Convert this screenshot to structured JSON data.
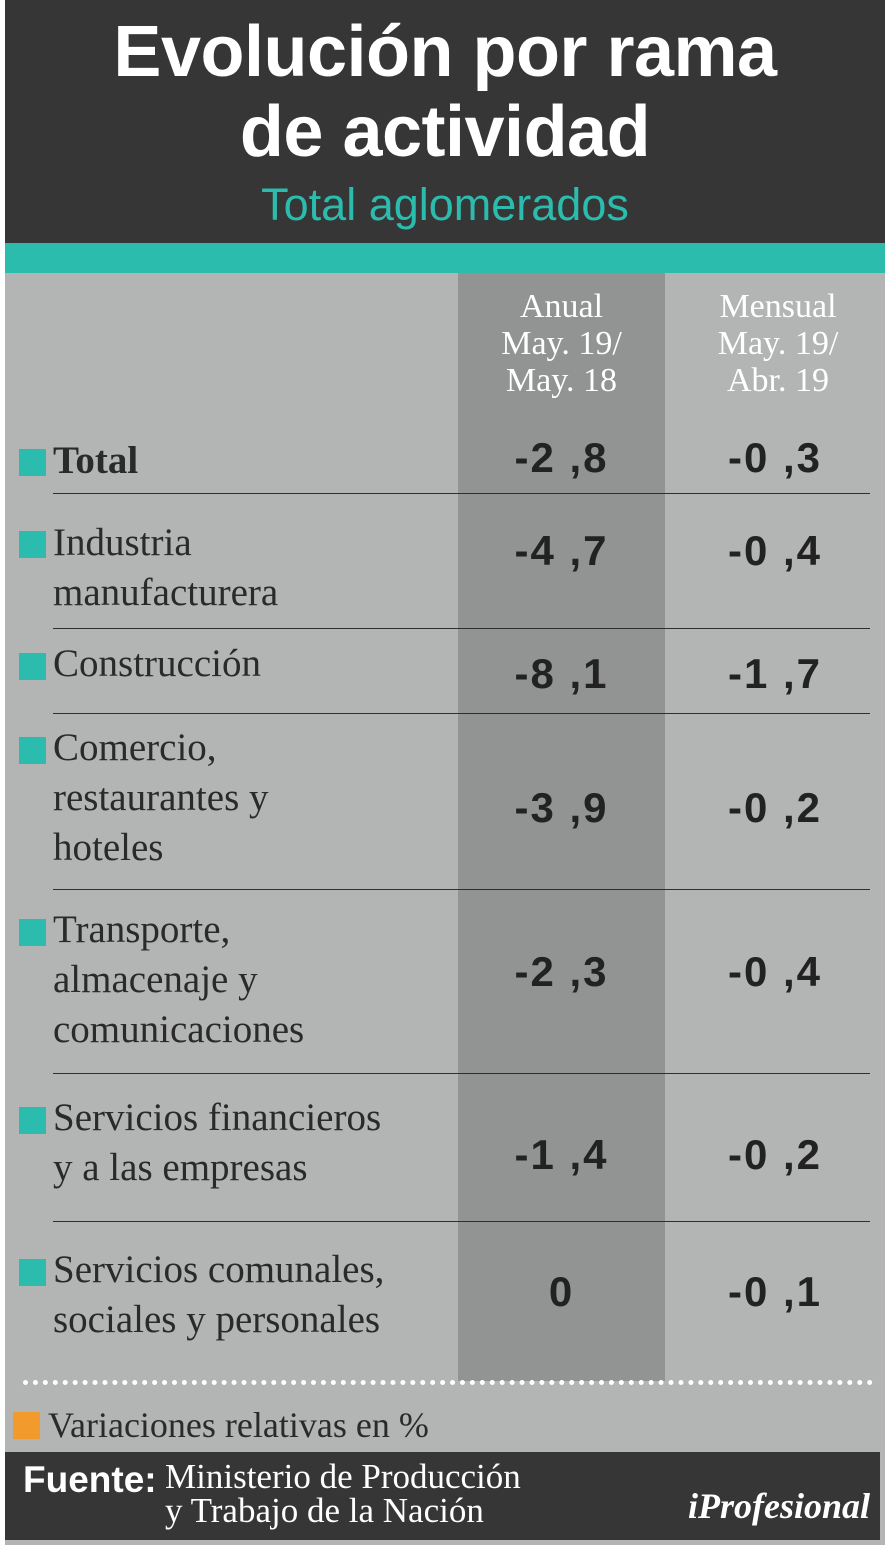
{
  "header": {
    "title_line1": "Evolución por rama",
    "title_line2": "de actividad",
    "subtitle": "Total aglomerados"
  },
  "columns": {
    "anual": [
      "Anual",
      "May. 19/",
      "May. 18"
    ],
    "mensual": [
      "Mensual",
      "May. 19/",
      "Abr. 19"
    ]
  },
  "rows": [
    {
      "label": [
        "Total"
      ],
      "anual": "-2 ,8",
      "mensual": "-0 ,3"
    },
    {
      "label": [
        "Industria",
        "manufacturera"
      ],
      "anual": "-4 ,7",
      "mensual": "-0 ,4"
    },
    {
      "label": [
        "Construcción"
      ],
      "anual": "-8 ,1",
      "mensual": "-1 ,7"
    },
    {
      "label": [
        "Comercio,",
        "restaurantes y",
        "hoteles"
      ],
      "anual": "-3 ,9",
      "mensual": "-0 ,2"
    },
    {
      "label": [
        "Transporte,",
        "almacenaje y",
        "comunicaciones"
      ],
      "anual": "-2 ,3",
      "mensual": "-0 ,4"
    },
    {
      "label": [
        "Servicios financieros",
        "y a las empresas"
      ],
      "anual": "-1 ,4",
      "mensual": "-0 ,2"
    },
    {
      "label": [
        "Servicios comunales,",
        "sociales y personales"
      ],
      "anual": "0",
      "mensual": "-0 ,1"
    }
  ],
  "legend": {
    "text": "Variaciones relativas en %"
  },
  "footer": {
    "source_label": "Fuente:",
    "source_line1": "Ministerio de Producción",
    "source_line2": "y Trabajo de la Nación",
    "logo_text": "iProfesional"
  },
  "colors": {
    "header_bg": "#363636",
    "accent_teal": "#2bbcae",
    "legend_orange": "#f39a2d",
    "panel_gray": "#b3b4b4",
    "column_shade": "#929393"
  }
}
